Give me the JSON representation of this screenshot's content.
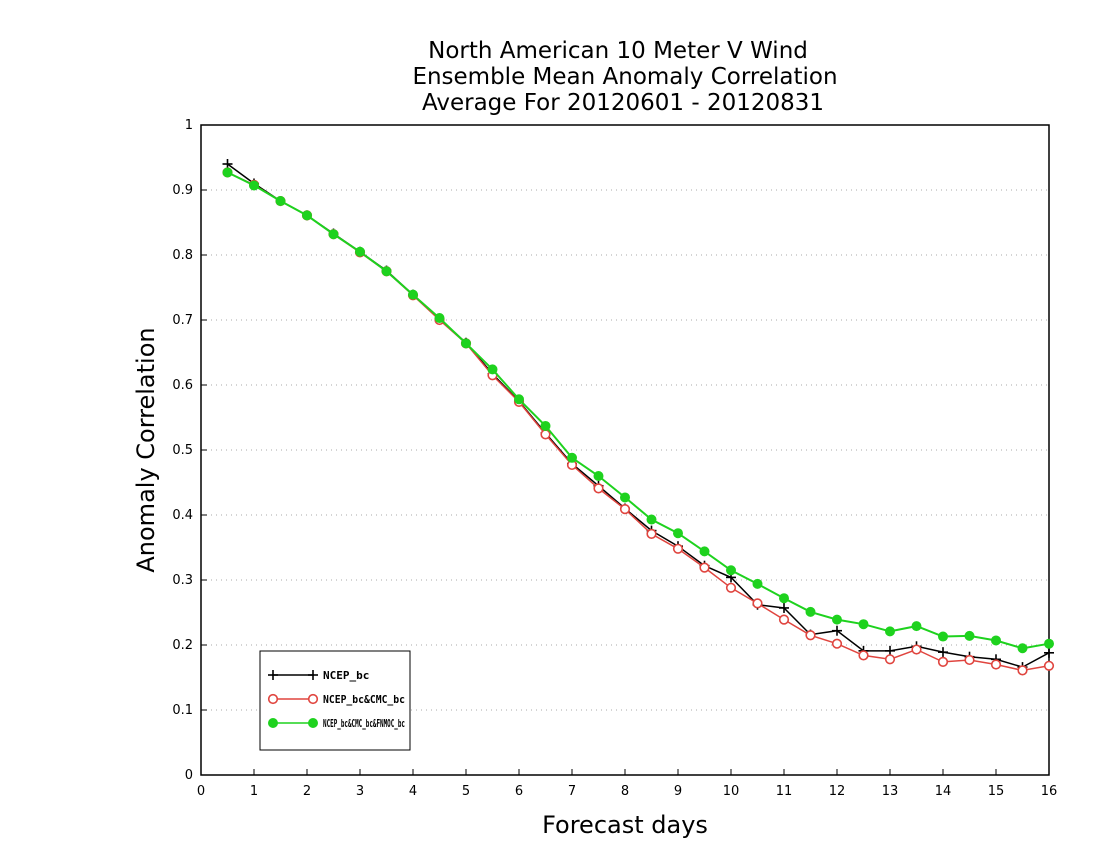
{
  "chart_data": {
    "type": "line",
    "title": [
      "North American 10 Meter V Wind",
      "Ensemble Mean Anomaly Correlation",
      "Average For 20120601 - 20120831"
    ],
    "xlabel": "Forecast days",
    "ylabel": "Anomaly Correlation",
    "xlim": [
      0,
      16
    ],
    "ylim": [
      0,
      1
    ],
    "xticks": [
      "0",
      "1",
      "2",
      "3",
      "4",
      "5",
      "6",
      "7",
      "8",
      "9",
      "10",
      "11",
      "12",
      "13",
      "14",
      "15",
      "16"
    ],
    "yticks": [
      "0",
      "0.1",
      "0.2",
      "0.3",
      "0.4",
      "0.5",
      "0.6",
      "0.7",
      "0.8",
      "0.9",
      "1"
    ],
    "grid": "horizontal dotted",
    "legend": "bottom-left",
    "x": [
      0.5,
      1,
      1.5,
      2,
      2.5,
      3,
      3.5,
      4,
      4.5,
      5,
      5.5,
      6,
      6.5,
      7,
      7.5,
      8,
      8.5,
      9,
      9.5,
      10,
      10.5,
      11,
      11.5,
      12,
      12.5,
      13,
      13.5,
      14,
      14.5,
      15,
      15.5,
      16
    ],
    "series": [
      {
        "name": "NCEP_bc",
        "color": "#000000",
        "marker": "plus",
        "values": [
          0.94,
          0.91,
          0.883,
          0.861,
          0.833,
          0.805,
          0.776,
          0.739,
          0.702,
          0.665,
          0.617,
          0.575,
          0.526,
          0.479,
          0.445,
          0.41,
          0.376,
          0.352,
          0.322,
          0.304,
          0.262,
          0.257,
          0.216,
          0.222,
          0.191,
          0.191,
          0.198,
          0.189,
          0.182,
          0.178,
          0.166,
          0.188
        ]
      },
      {
        "name": "NCEP_bc&CMC_bc",
        "color": "#e0453f",
        "marker": "open-circle",
        "values": [
          0.927,
          0.908,
          0.883,
          0.861,
          0.832,
          0.804,
          0.775,
          0.738,
          0.7,
          0.664,
          0.615,
          0.574,
          0.524,
          0.477,
          0.441,
          0.409,
          0.371,
          0.348,
          0.319,
          0.288,
          0.264,
          0.239,
          0.215,
          0.202,
          0.184,
          0.178,
          0.193,
          0.174,
          0.177,
          0.17,
          0.161,
          0.168
        ]
      },
      {
        "name": "NCEP_bc&CMC_bc&FNMOC_bc",
        "color": "#1ed21e",
        "marker": "filled-circle",
        "values": [
          0.927,
          0.907,
          0.883,
          0.861,
          0.832,
          0.805,
          0.775,
          0.739,
          0.703,
          0.664,
          0.624,
          0.578,
          0.537,
          0.488,
          0.46,
          0.427,
          0.393,
          0.372,
          0.344,
          0.315,
          0.294,
          0.272,
          0.251,
          0.239,
          0.232,
          0.221,
          0.229,
          0.213,
          0.214,
          0.207,
          0.195,
          0.202
        ]
      }
    ]
  }
}
